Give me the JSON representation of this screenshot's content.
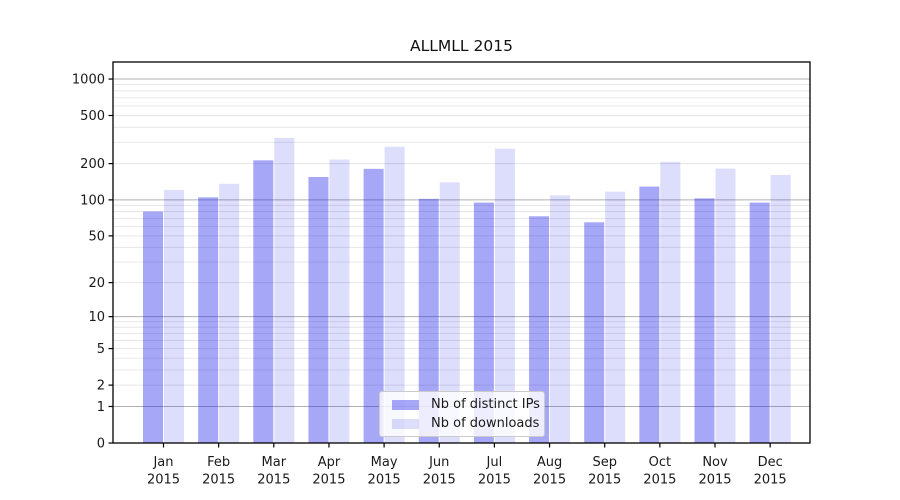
{
  "chart_data": {
    "type": "bar",
    "title": "ALLMLL 2015",
    "categories": [
      "Jan",
      "Feb",
      "Mar",
      "Apr",
      "May",
      "Jun",
      "Jul",
      "Aug",
      "Sep",
      "Oct",
      "Nov",
      "Dec"
    ],
    "year": "2015",
    "series": [
      {
        "name": "Nb of distinct IPs",
        "color": "rgba(25,25,235,0.385)",
        "values": [
          80,
          105,
          213,
          155,
          181,
          102,
          95,
          73,
          65,
          129,
          103,
          95
        ]
      },
      {
        "name": "Nb of downloads",
        "color": "rgba(25,25,235,0.15)",
        "values": [
          121,
          136,
          326,
          216,
          276,
          140,
          266,
          109,
          117,
          207,
          182,
          161
        ]
      }
    ],
    "y_scale": "log10(v+1)",
    "y_ticks": [
      0,
      1,
      2,
      5,
      10,
      20,
      50,
      100,
      200,
      500,
      1000
    ],
    "ylim": [
      0,
      1380
    ],
    "xlabel": "",
    "ylabel": "",
    "grid": "on",
    "legend_position": "lower-center",
    "colors": {
      "grid_major": "#b0b0b0",
      "grid_minor": "#e6e6e6",
      "axis": "#000000",
      "text": "#1a1a1a",
      "bar_distinct_ips_hex": "#a8a8f0",
      "bar_downloads_hex": "#dcdcfa"
    }
  }
}
